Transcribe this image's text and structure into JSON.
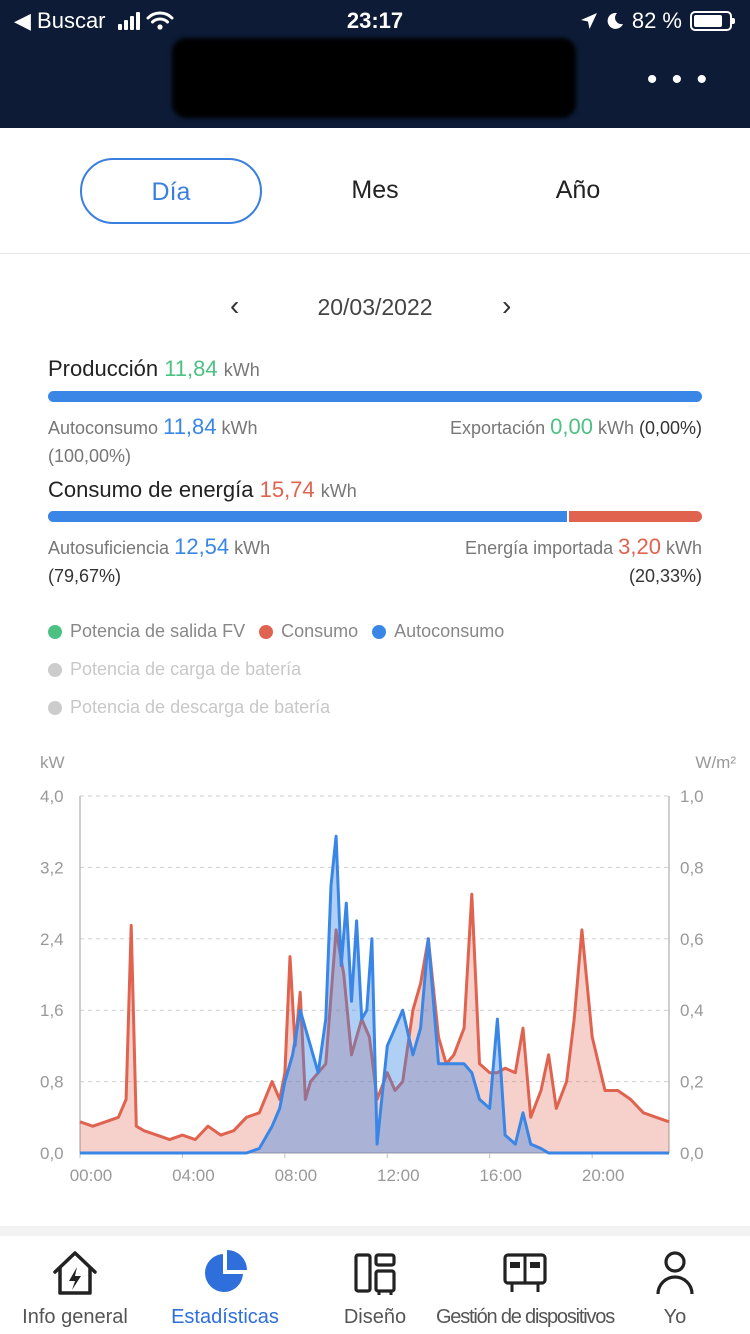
{
  "status_bar": {
    "back_label": "◀ Buscar",
    "time": "23:17",
    "battery": "82 %",
    "battery_level": 0.82
  },
  "header": {
    "more_label": "• • •"
  },
  "tabs": [
    {
      "label": "Día",
      "active": true
    },
    {
      "label": "Mes",
      "active": false
    },
    {
      "label": "Año",
      "active": false
    }
  ],
  "date_nav": {
    "prev": "‹",
    "date": "20/03/2022",
    "next": "›"
  },
  "production": {
    "label": "Producción",
    "value": "11,84",
    "unit": "kWh",
    "self_consumption_label": "Autoconsumo",
    "self_consumption_value": "11,84",
    "self_consumption_unit": "kWh",
    "self_consumption_pct": "(100,00%)",
    "export_label": "Exportación",
    "export_value": "0,00",
    "export_unit": "kWh",
    "export_pct": "(0,00%)",
    "bar_fraction": 1.0
  },
  "consumption": {
    "label": "Consumo de energía",
    "value": "15,74",
    "unit": "kWh",
    "self_sufficiency_label": "Autosuficiencia",
    "self_sufficiency_value": "12,54",
    "self_sufficiency_unit": "kWh",
    "self_sufficiency_pct": "(79,67%)",
    "import_label": "Energía importada",
    "import_value": "3,20",
    "import_unit": "kWh",
    "import_pct": "(20,33%)",
    "bar_fraction": 0.7967
  },
  "legend": [
    {
      "label": "Potencia de salida FV",
      "color": "#4cc182",
      "enabled": true
    },
    {
      "label": "Consumo",
      "color": "#e06350",
      "enabled": true
    },
    {
      "label": "Autoconsumo",
      "color": "#3a86e6",
      "enabled": true
    },
    {
      "label": "Potencia de carga de batería",
      "color": "#cccccc",
      "enabled": false
    },
    {
      "label": "Potencia de descarga de batería",
      "color": "#cccccc",
      "enabled": false
    }
  ],
  "chart_data": {
    "type": "area",
    "ylabel": "kW",
    "y2label": "W/m²",
    "ylim": [
      0,
      4.0
    ],
    "y2lim": [
      0,
      1.0
    ],
    "yticks": [
      "0,0",
      "0,8",
      "1,6",
      "2,4",
      "3,2",
      "4,0"
    ],
    "y2ticks": [
      "0,0",
      "0,2",
      "0,4",
      "0,6",
      "0,8",
      "1,0"
    ],
    "xticks": [
      "00:00",
      "04:00",
      "08:00",
      "12:00",
      "16:00",
      "20:00"
    ],
    "xlim_hours": [
      0,
      23
    ],
    "grid": true,
    "series": [
      {
        "name": "Consumo",
        "color": "#e06350",
        "x": [
          0,
          0.5,
          1,
          1.5,
          1.8,
          2,
          2.2,
          2.5,
          3,
          3.5,
          4,
          4.5,
          5,
          5.5,
          6,
          6.5,
          7,
          7.5,
          7.8,
          8,
          8.2,
          8.4,
          8.6,
          8.8,
          9,
          9.3,
          9.6,
          10,
          10.3,
          10.6,
          11,
          11.3,
          11.6,
          12,
          12.3,
          12.6,
          13,
          13.3,
          13.6,
          14,
          14.3,
          14.6,
          15,
          15.3,
          15.6,
          16,
          16.3,
          16.6,
          17,
          17.3,
          17.6,
          18,
          18.3,
          18.6,
          19,
          19.3,
          19.6,
          20,
          20.5,
          21,
          21.5,
          22,
          22.5,
          23
        ],
        "y": [
          0.35,
          0.3,
          0.35,
          0.4,
          0.6,
          2.55,
          0.3,
          0.25,
          0.2,
          0.15,
          0.2,
          0.15,
          0.3,
          0.2,
          0.25,
          0.4,
          0.45,
          0.8,
          0.6,
          0.9,
          2.2,
          1.2,
          1.8,
          0.6,
          0.8,
          0.9,
          1.0,
          2.5,
          2.0,
          1.1,
          1.5,
          1.3,
          0.6,
          0.9,
          0.7,
          0.8,
          1.6,
          1.9,
          2.4,
          1.3,
          1.0,
          1.1,
          1.4,
          2.9,
          1.0,
          0.9,
          0.9,
          0.95,
          0.9,
          1.4,
          0.4,
          0.7,
          1.1,
          0.5,
          0.8,
          1.5,
          2.5,
          1.3,
          0.7,
          0.7,
          0.6,
          0.45,
          0.4,
          0.35
        ]
      },
      {
        "name": "Autoconsumo",
        "color": "#3a86e6",
        "x": [
          0,
          6.5,
          7,
          7.5,
          7.8,
          8,
          8.3,
          8.6,
          9,
          9.3,
          9.6,
          9.8,
          10,
          10.2,
          10.4,
          10.6,
          10.8,
          11,
          11.2,
          11.4,
          11.6,
          12,
          12.3,
          12.6,
          13,
          13.3,
          13.6,
          14,
          14.3,
          14.6,
          15,
          15.3,
          15.6,
          16,
          16.3,
          16.6,
          17,
          17.3,
          17.6,
          18,
          18.3,
          23
        ],
        "y": [
          0,
          0,
          0.05,
          0.3,
          0.5,
          0.8,
          1.1,
          1.6,
          1.2,
          0.9,
          1.5,
          3.0,
          3.55,
          2.1,
          2.8,
          1.7,
          2.6,
          1.5,
          1.6,
          2.4,
          0.1,
          1.2,
          1.4,
          1.6,
          1.1,
          1.4,
          2.4,
          1.0,
          1.0,
          1.0,
          1.0,
          0.9,
          0.6,
          0.5,
          1.5,
          0.2,
          0.1,
          0.45,
          0.1,
          0.05,
          0,
          0
        ]
      }
    ]
  },
  "bottom_nav": [
    {
      "label": "Info general",
      "icon": "house-bolt-icon",
      "active": false
    },
    {
      "label": "Estadísticas",
      "icon": "pie-chart-icon",
      "active": true
    },
    {
      "label": "Diseño",
      "icon": "layout-icon",
      "active": false
    },
    {
      "label": "Gestión de dispositivos",
      "icon": "device-icon",
      "active": false
    },
    {
      "label": "Yo",
      "icon": "person-icon",
      "active": false
    }
  ]
}
